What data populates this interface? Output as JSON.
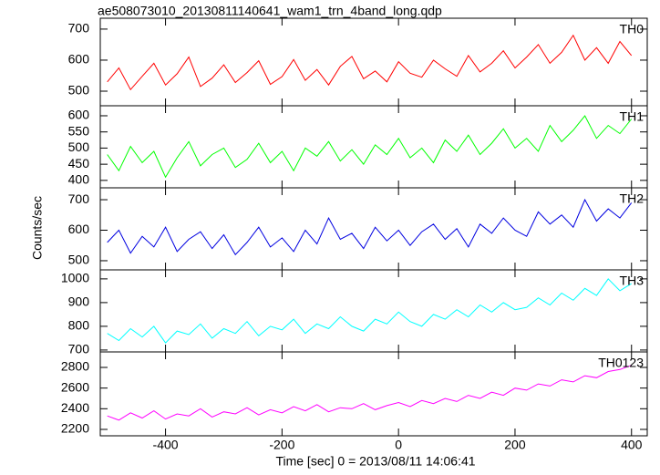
{
  "chart_data": {
    "type": "line",
    "title": "ae508073010_20130811140641_wam1_trn_4band_long.qdp",
    "xlabel": "Time [sec] 0 = 2013/08/11 14:06:41",
    "ylabel": "Counts/sec",
    "x": [
      -500,
      -480,
      -460,
      -440,
      -420,
      -400,
      -380,
      -360,
      -340,
      -320,
      -300,
      -280,
      -260,
      -240,
      -220,
      -200,
      -180,
      -160,
      -140,
      -120,
      -100,
      -80,
      -60,
      -40,
      -20,
      0,
      20,
      40,
      60,
      80,
      100,
      120,
      140,
      160,
      180,
      200,
      220,
      240,
      260,
      280,
      300,
      320,
      340,
      360,
      380,
      400
    ],
    "xlim": [
      -512,
      427
    ],
    "xticks": [
      -400,
      -200,
      0,
      200,
      400
    ],
    "panels": [
      {
        "name": "TH0",
        "color": "#ff0000",
        "ylim": [
          453,
          735
        ],
        "yticks": [
          500,
          600,
          700
        ],
        "values": [
          530,
          575,
          505,
          548,
          590,
          520,
          556,
          610,
          515,
          542,
          585,
          528,
          560,
          598,
          522,
          547,
          602,
          535,
          570,
          520,
          580,
          612,
          540,
          565,
          530,
          595,
          558,
          545,
          600,
          572,
          548,
          615,
          562,
          590,
          630,
          575,
          610,
          650,
          590,
          625,
          680,
          600,
          640,
          590,
          660,
          615
        ]
      },
      {
        "name": "TH1",
        "color": "#00ff00",
        "ylim": [
          377,
          631
        ],
        "yticks": [
          400,
          450,
          500,
          550,
          600
        ],
        "values": [
          480,
          430,
          505,
          455,
          490,
          410,
          470,
          520,
          445,
          480,
          500,
          440,
          465,
          515,
          455,
          490,
          430,
          500,
          475,
          520,
          460,
          495,
          450,
          510,
          480,
          530,
          470,
          500,
          455,
          525,
          490,
          540,
          480,
          515,
          560,
          500,
          530,
          490,
          570,
          520,
          555,
          600,
          530,
          570,
          545,
          590
        ]
      },
      {
        "name": "TH2",
        "color": "#0000e0",
        "ylim": [
          470,
          739
        ],
        "yticks": [
          500,
          600,
          700
        ],
        "values": [
          560,
          600,
          525,
          580,
          545,
          610,
          530,
          570,
          595,
          540,
          585,
          520,
          560,
          610,
          545,
          575,
          530,
          600,
          555,
          640,
          570,
          590,
          540,
          610,
          565,
          600,
          550,
          595,
          620,
          570,
          605,
          545,
          620,
          590,
          640,
          600,
          580,
          660,
          620,
          650,
          610,
          700,
          630,
          670,
          640,
          690
        ]
      },
      {
        "name": "TH3",
        "color": "#00ffff",
        "ylim": [
          692,
          1038
        ],
        "yticks": [
          700,
          800,
          900,
          1000
        ],
        "values": [
          770,
          740,
          790,
          755,
          800,
          730,
          780,
          765,
          810,
          750,
          790,
          770,
          820,
          760,
          800,
          785,
          830,
          770,
          810,
          790,
          840,
          800,
          780,
          830,
          810,
          860,
          820,
          800,
          850,
          830,
          870,
          840,
          890,
          860,
          900,
          870,
          880,
          920,
          890,
          940,
          910,
          960,
          930,
          1000,
          950,
          980
        ]
      },
      {
        "name": "TH0123",
        "color": "#ff00ff",
        "ylim": [
          2138,
          2950
        ],
        "yticks": [
          2200,
          2400,
          2600,
          2800
        ],
        "values": [
          2330,
          2290,
          2360,
          2310,
          2380,
          2300,
          2350,
          2330,
          2400,
          2320,
          2370,
          2350,
          2410,
          2340,
          2390,
          2360,
          2420,
          2380,
          2440,
          2370,
          2410,
          2400,
          2450,
          2390,
          2430,
          2460,
          2420,
          2480,
          2450,
          2500,
          2470,
          2530,
          2500,
          2560,
          2530,
          2600,
          2580,
          2640,
          2620,
          2680,
          2660,
          2720,
          2700,
          2760,
          2780,
          2820
        ]
      }
    ]
  }
}
